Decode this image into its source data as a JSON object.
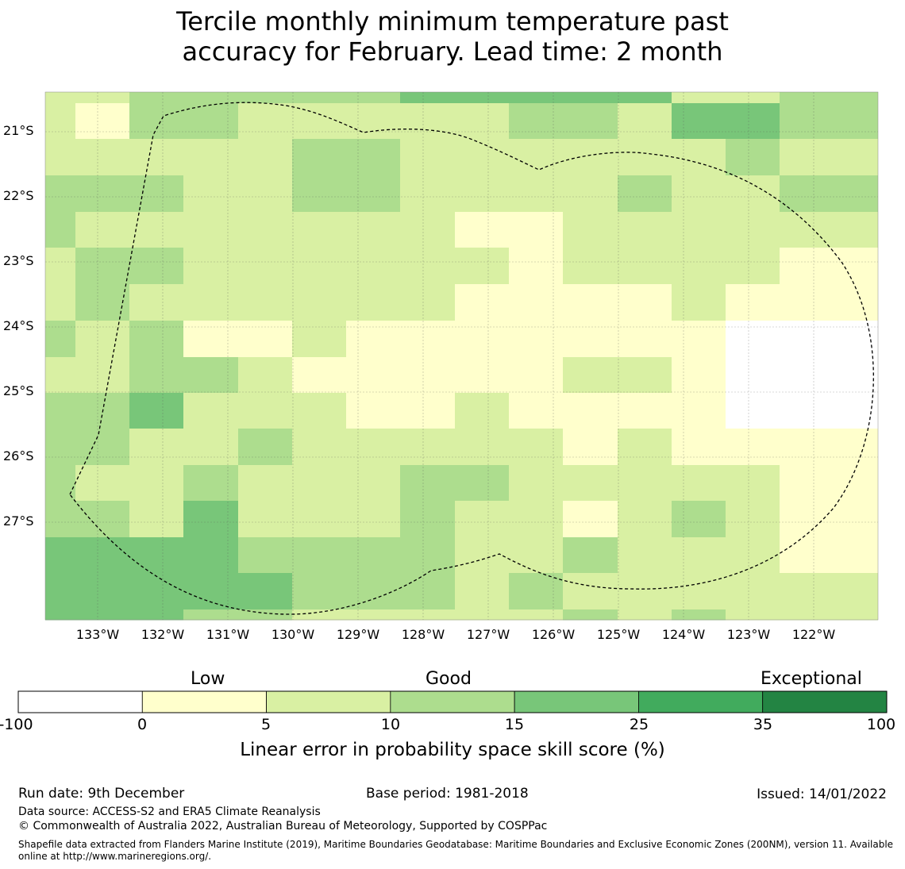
{
  "title": {
    "line1": "Tercile monthly minimum temperature past",
    "line2": "accuracy for February. Lead time: 2 month"
  },
  "map": {
    "lat_labels": [
      "21°S",
      "22°S",
      "23°S",
      "24°S",
      "25°S",
      "26°S",
      "27°S"
    ],
    "lon_labels": [
      "133°W",
      "132°W",
      "131°W",
      "130°W",
      "129°W",
      "128°W",
      "127°W",
      "126°W",
      "125°W",
      "124°W",
      "123°W",
      "122°W"
    ],
    "category_colors": [
      "#ffffff",
      "#ffffcc",
      "#d9f0a3",
      "#addd8e",
      "#78c679",
      "#41ab5d",
      "#238443"
    ],
    "grid_rows": [
      "223333344444223",
      "213322222332443",
      "222223322222232",
      "333223322223223",
      "322222221122222",
      "233222222122221",
      "232222221111211",
      "323112111111100",
      "223321111122100",
      "334222112111100",
      "332232222212111",
      "322322233222221",
      "332422232212321",
      "444433332232221",
      "444443332322222",
      "444332222232322"
    ]
  },
  "colorbar": {
    "category_words": [
      "Low",
      "Good",
      "Exceptional"
    ],
    "ticks": [
      "-100",
      "0",
      "5",
      "10",
      "15",
      "25",
      "35",
      "100"
    ],
    "colors": [
      "#ffffff",
      "#ffffcc",
      "#d9f0a3",
      "#addd8e",
      "#78c679",
      "#41ab5d",
      "#238443"
    ],
    "label": "Linear error in probability space skill score (%)"
  },
  "footer": {
    "run_date": "Run date: 9th December",
    "base_period": "Base period: 1981-2018",
    "issued": "Issued: 14/01/2022",
    "data_source": "Data source: ACCESS-S2 and ERA5 Climate Reanalysis",
    "copyright": "© Commonwealth of Australia 2022, Australian Bureau of Meteorology, Supported by COSPPac",
    "shapefile_line1": "Shapefile data extracted from Flanders Marine Institute (2019), Maritime Boundaries Geodatabase: Maritime Boundaries and Exclusive Economic Zones (200NM), version 11. Available",
    "shapefile_line2": "online at http://www.marineregions.org/."
  }
}
